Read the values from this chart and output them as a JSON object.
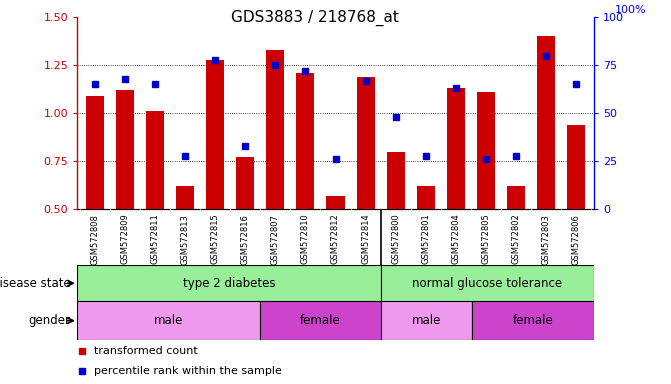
{
  "title": "GDS3883 / 218768_at",
  "samples": [
    "GSM572808",
    "GSM572809",
    "GSM572811",
    "GSM572813",
    "GSM572815",
    "GSM572816",
    "GSM572807",
    "GSM572810",
    "GSM572812",
    "GSM572814",
    "GSM572800",
    "GSM572801",
    "GSM572804",
    "GSM572805",
    "GSM572802",
    "GSM572803",
    "GSM572806"
  ],
  "bar_values": [
    1.09,
    1.12,
    1.01,
    0.62,
    1.28,
    0.77,
    1.33,
    1.21,
    0.57,
    1.19,
    0.8,
    0.62,
    1.13,
    1.11,
    0.62,
    1.4,
    0.94
  ],
  "dot_values": [
    65,
    68,
    65,
    28,
    78,
    33,
    75,
    72,
    26,
    67,
    48,
    28,
    63,
    26,
    28,
    80,
    65
  ],
  "ylim_left": [
    0.5,
    1.5
  ],
  "ylim_right": [
    0,
    100
  ],
  "yticks_left": [
    0.5,
    0.75,
    1.0,
    1.25,
    1.5
  ],
  "yticks_right": [
    0,
    25,
    50,
    75,
    100
  ],
  "bar_color": "#cc0000",
  "dot_color": "#0000cc",
  "left_label_color": "#cc0000",
  "right_label_color": "#0000ff",
  "row_label_disease": "disease state",
  "row_label_gender": "gender",
  "disease_label_fontsize": 8,
  "gender_male_color": "#ee99ee",
  "gender_female_color": "#cc44cc",
  "disease_color": "#99ee99",
  "xtick_bg": "#d0d0d0",
  "title_fontsize": 11
}
